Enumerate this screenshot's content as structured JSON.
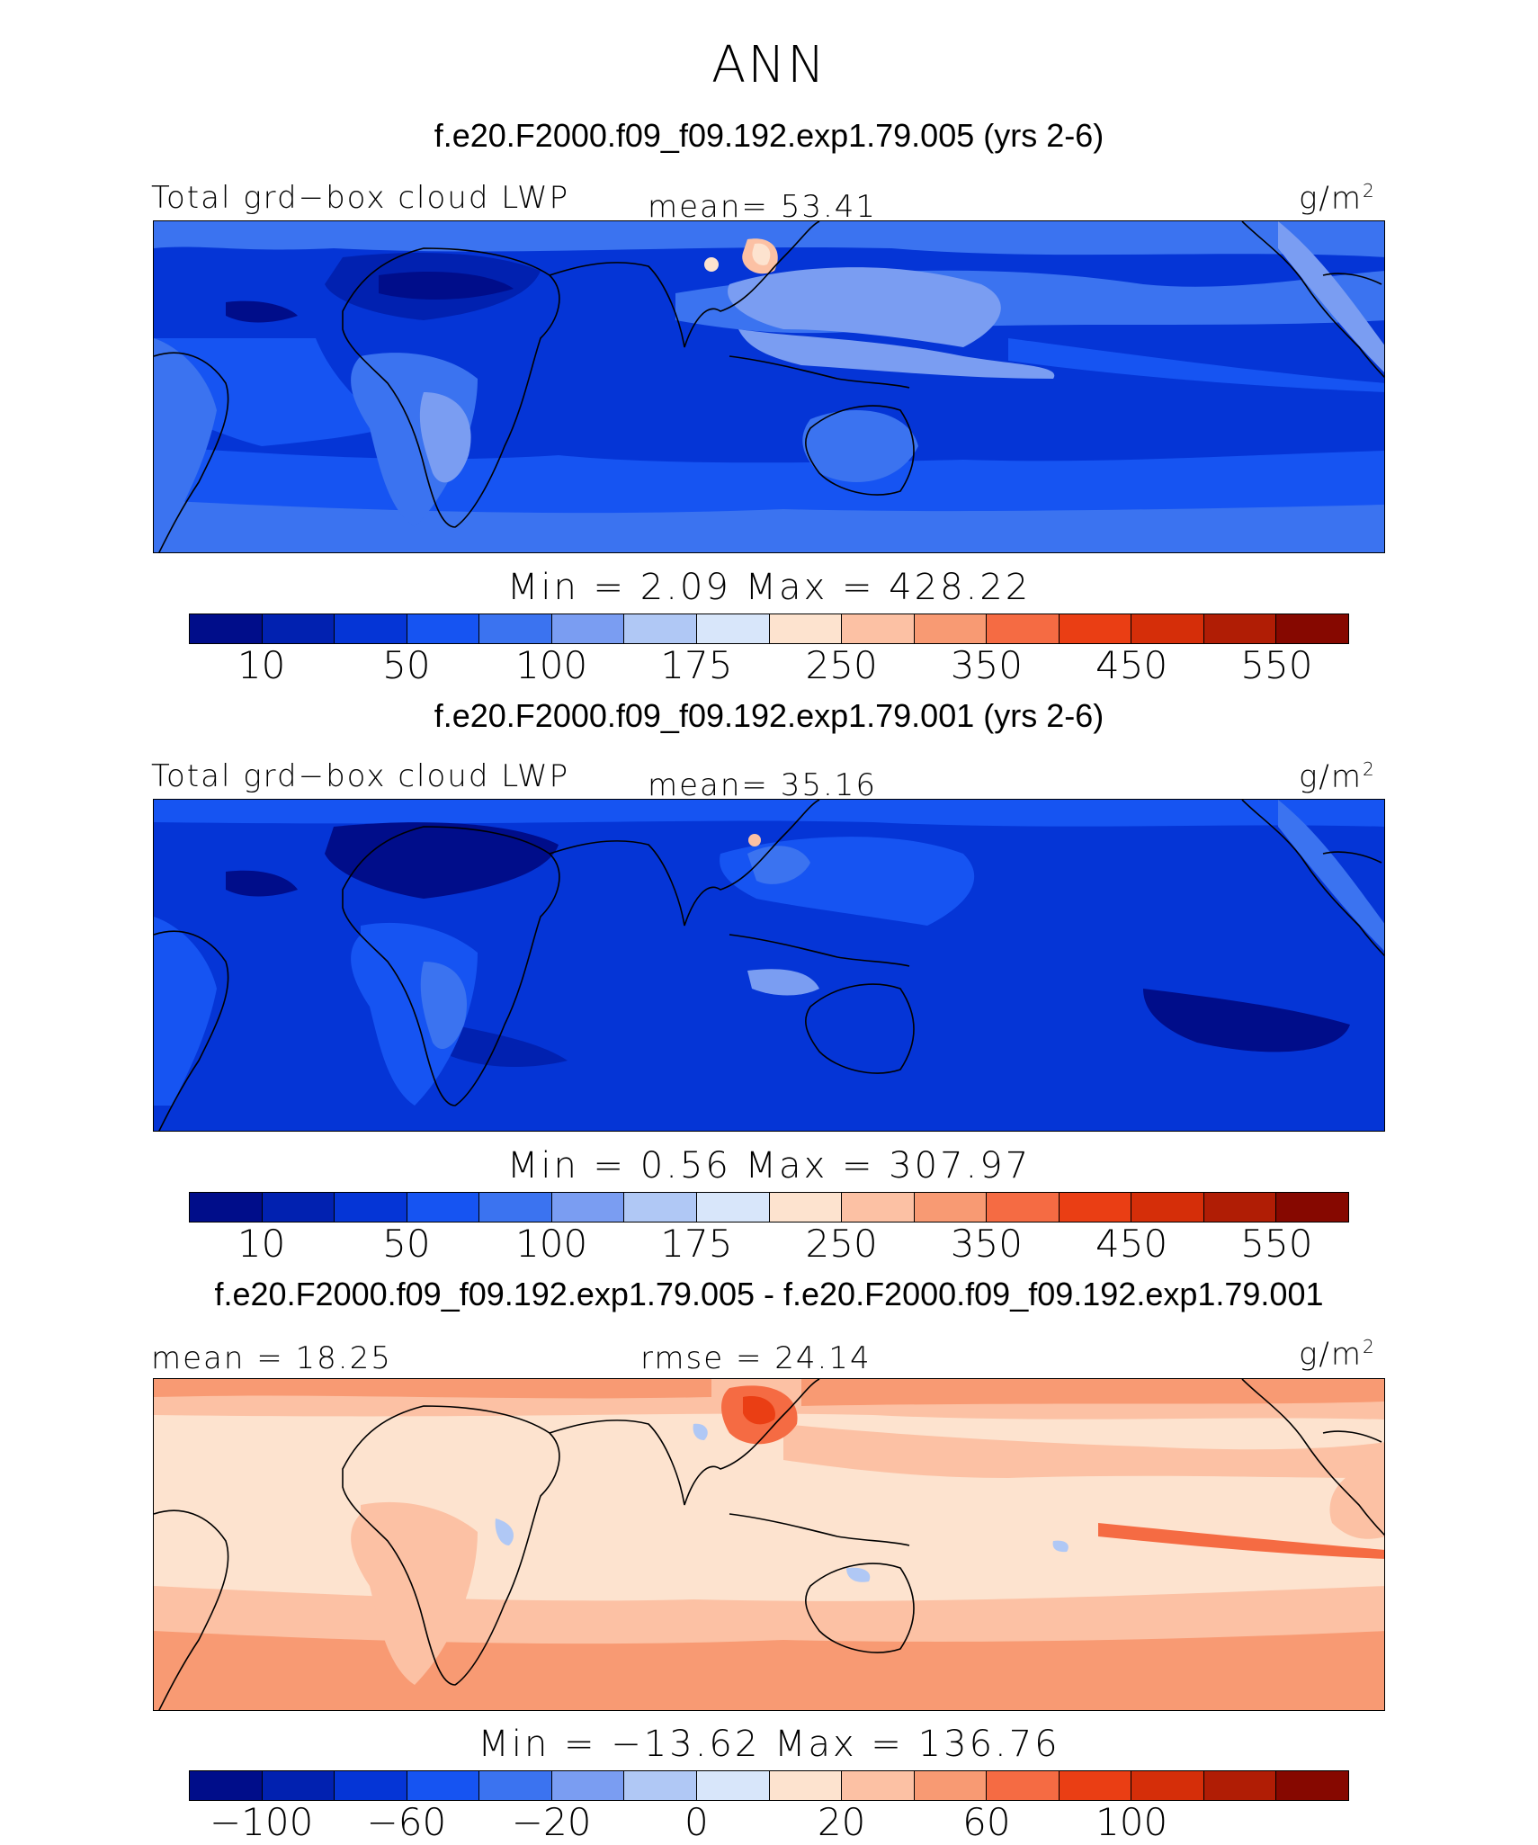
{
  "title": "ANN",
  "panels": [
    {
      "case_title": "f.e20.F2000.f09_f09.192.exp1.79.005 (yrs 2-6)",
      "left_label": "Total grd−box cloud LWP",
      "center_label": "mean=  53.41",
      "units": "g/m",
      "units_sup": "2",
      "stats": "Min =    2.09  Max = 428.22",
      "tick_labels": [
        "10",
        "50",
        "100",
        "175",
        "250",
        "350",
        "450",
        "550"
      ],
      "colors": [
        "#000d8a",
        "#0121b0",
        "#0535d6",
        "#1654f2",
        "#3b73f0",
        "#7a9df2",
        "#b0c8f5",
        "#d8e6fa",
        "#fde3cf",
        "#fcc1a4",
        "#f89a73",
        "#f56b43",
        "#ea3e14",
        "#d52e09",
        "#b01d05",
        "#860800"
      ],
      "field": "lwp_control"
    },
    {
      "case_title": "f.e20.F2000.f09_f09.192.exp1.79.001 (yrs 2-6)",
      "left_label": "Total grd−box cloud LWP",
      "center_label": "mean=  35.16",
      "units": "g/m",
      "units_sup": "2",
      "stats": "Min =    0.56  Max = 307.97",
      "tick_labels": [
        "10",
        "50",
        "100",
        "175",
        "250",
        "350",
        "450",
        "550"
      ],
      "colors": [
        "#000d8a",
        "#0121b0",
        "#0535d6",
        "#1654f2",
        "#3b73f0",
        "#7a9df2",
        "#b0c8f5",
        "#d8e6fa",
        "#fde3cf",
        "#fcc1a4",
        "#f89a73",
        "#f56b43",
        "#ea3e14",
        "#d52e09",
        "#b01d05",
        "#860800"
      ],
      "field": "lwp_test"
    },
    {
      "case_title": "f.e20.F2000.f09_f09.192.exp1.79.005 - f.e20.F2000.f09_f09.192.exp1.79.001",
      "left_label": "mean =  18.25",
      "center_label": "rmse =  24.14",
      "units": "g/m",
      "units_sup": "2",
      "stats": "Min = −13.62  Max = 136.76",
      "tick_labels": [
        "−100",
        "−60",
        "−20",
        "0",
        "20",
        "60",
        "100"
      ],
      "colors": [
        "#000d8a",
        "#0121b0",
        "#0535d6",
        "#1654f2",
        "#3b73f0",
        "#7a9df2",
        "#b0c8f5",
        "#d8e6fa",
        "#fde3cf",
        "#fcc1a4",
        "#f89a73",
        "#f56b43",
        "#ea3e14",
        "#d52e09",
        "#b01d05",
        "#860800"
      ],
      "field": "lwp_diff"
    }
  ]
}
